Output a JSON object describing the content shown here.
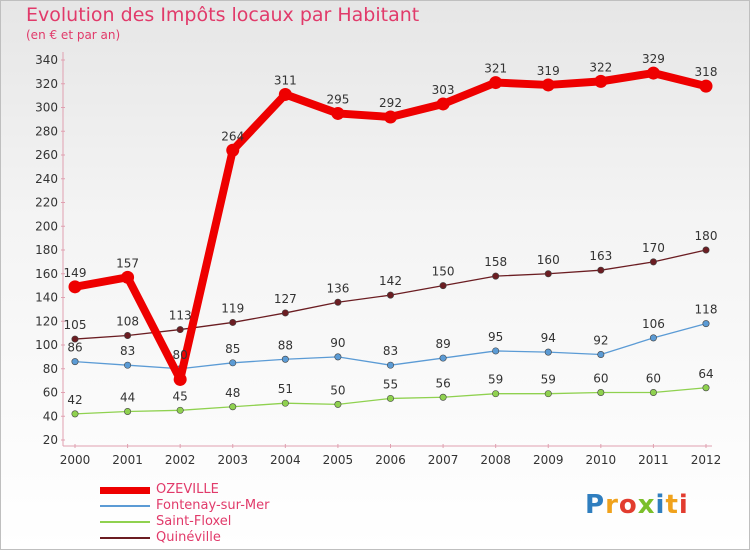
{
  "header": {
    "title": "Evolution des Impôts locaux par Habitant",
    "subtitle": "(en € et par an)"
  },
  "logo": {
    "text": "Proxiti",
    "colors": [
      "#2f7ebf",
      "#f0a21c",
      "#e23c2f",
      "#7bbf2a",
      "#2f7ebf",
      "#f0a21c",
      "#e23c2f"
    ]
  },
  "chart_data": {
    "type": "line",
    "x": [
      "2000",
      "2001",
      "2002",
      "2003",
      "2004",
      "2005",
      "2006",
      "2007",
      "2008",
      "2009",
      "2010",
      "2011",
      "2012"
    ],
    "ylim": [
      20,
      340
    ],
    "yticks": [
      20,
      40,
      60,
      80,
      100,
      120,
      140,
      160,
      180,
      200,
      220,
      240,
      260,
      280,
      300,
      320,
      340
    ],
    "grid": false,
    "legend_position": "bottom-left",
    "series": [
      {
        "name": "OZEVILLE",
        "color": "#ee0000",
        "values": [
          149,
          157,
          71,
          264,
          311,
          295,
          292,
          303,
          321,
          319,
          322,
          329,
          318
        ],
        "labels": [
          "149",
          "157",
          "",
          "264",
          "311",
          "295",
          "292",
          "303",
          "321",
          "319",
          "322",
          "329",
          "318"
        ]
      },
      {
        "name": "Fontenay-sur-Mer",
        "color": "#5b9bd5",
        "values": [
          86,
          83,
          80,
          85,
          88,
          90,
          83,
          89,
          95,
          94,
          92,
          106,
          118
        ],
        "labels": [
          "86",
          "83",
          "80",
          "85",
          "88",
          "90",
          "83",
          "89",
          "95",
          "94",
          "92",
          "106",
          "118"
        ]
      },
      {
        "name": "Saint-Floxel",
        "color": "#8fd14f",
        "values": [
          42,
          44,
          45,
          48,
          51,
          50,
          55,
          56,
          59,
          59,
          60,
          60,
          64
        ],
        "labels": [
          "42",
          "44",
          "45",
          "48",
          "51",
          "50",
          "55",
          "56",
          "59",
          "59",
          "60",
          "60",
          "64"
        ]
      },
      {
        "name": "Quinéville",
        "color": "#6b1d22",
        "values": [
          105,
          108,
          113,
          119,
          127,
          136,
          142,
          150,
          158,
          160,
          163,
          170,
          180
        ],
        "labels": [
          "105",
          "108",
          "113",
          "119",
          "127",
          "136",
          "142",
          "150",
          "158",
          "160",
          "163",
          "170",
          "180"
        ]
      }
    ]
  }
}
